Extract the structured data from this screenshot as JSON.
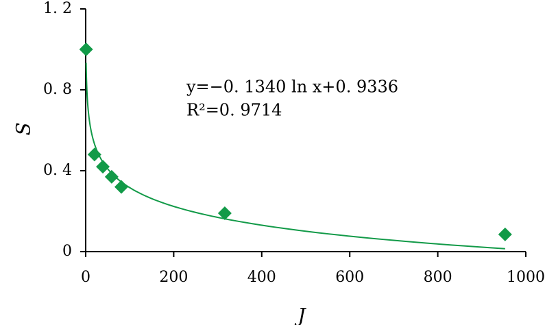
{
  "chart_data": {
    "type": "scatter",
    "x_label": "J",
    "y_label": "S",
    "annotation": [
      "y=−0. 1340 ln x+0. 9336",
      "R²=0. 9714"
    ],
    "series": [
      {
        "name": "S",
        "color": "#129a48",
        "x": [
          1,
          20,
          39,
          59,
          81,
          316,
          953
        ],
        "values": [
          1.0,
          0.48,
          0.42,
          0.37,
          0.32,
          0.19,
          0.085
        ]
      }
    ],
    "trendline": {
      "type": "log",
      "slope": -0.134,
      "intercept": 0.9336
    },
    "xlim": [
      0,
      1000
    ],
    "xticks": [
      0,
      200,
      400,
      600,
      800,
      1000
    ],
    "ylim": [
      0,
      1.2
    ],
    "yticks": [
      0,
      {
        "value": 0.4,
        "label": "0. 4"
      },
      {
        "value": 0.8,
        "label": "0. 8"
      },
      {
        "value": 1.2,
        "label": "1. 2"
      }
    ],
    "grid": false
  }
}
